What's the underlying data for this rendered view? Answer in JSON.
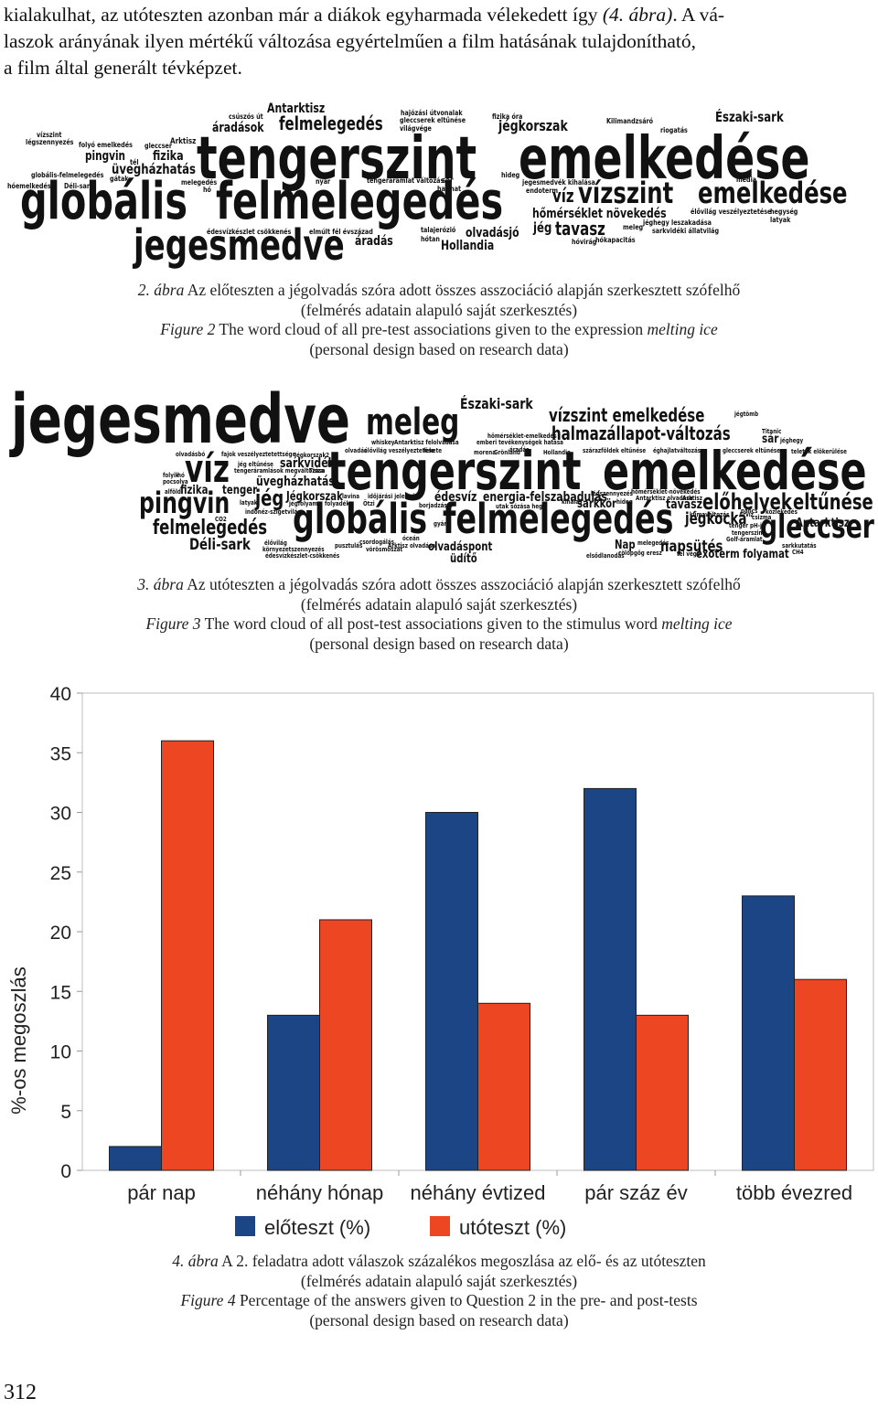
{
  "intro": {
    "lines": [
      [
        "kialakulhat, az utóteszten azonban már a diákok egyharmada vélekedett így ",
        "(4. ábra)",
        ". A vá-"
      ],
      [
        "laszok arányának ilyen mértékű változása egyértelműen a film hatásának tulajdonítható,",
        "",
        ""
      ],
      [
        "a film által generált tévképzet.",
        "",
        ""
      ]
    ]
  },
  "cloud_pre": {
    "words": [
      "Antarktisz",
      "csúszós út",
      "áradások",
      "felmelegedés",
      "hajózási útvonalak",
      "gleccserek eltűnése",
      "világvége",
      "fizika óra",
      "jégkorszak",
      "Kilimandzsáró",
      "riogatás",
      "Északi-sark",
      "Arktisz",
      "folyó emelkedés",
      "gleccser",
      "vízszint",
      "pingvin",
      "tél",
      "fizika",
      "légszennyezés",
      "üvegházhatás",
      "globális-felmelegedés",
      "gátak",
      "tengerszint",
      "emelkedése",
      "hideg",
      "nyár",
      "melegedés",
      "tengeráramlat változás",
      "sár",
      "harmat",
      "jegesmedvék kihalása",
      "endoterm",
      "média",
      "hóemelkedés",
      "Déli-sark",
      "hó",
      "globális",
      "felmelegedés",
      "víz",
      "vízszint",
      "emelkedése",
      "élővilág veszélyeztetése",
      "hegység",
      "latyak",
      "hőmérséklet növekedés",
      "jéghegy leszakadása",
      "sarkvidéki állatvilág",
      "meleg",
      "jég",
      "tavasz",
      "édesvízkészlet csökkenés",
      "elmúlt fél évszázad",
      "talajerózió",
      "hótan",
      "olvadásjó",
      "áradás",
      "Hollandia",
      "hóvirág",
      "hókapacitás",
      "jegesmedve"
    ]
  },
  "cloud_post": {
    "words": [
      "jegesmedve",
      "meleg",
      "Északi-sark",
      "vízszint emelkedése",
      "jégtömb",
      "hőmérséklet-emelkedés",
      "emberi tevékenységek hatása",
      "áradás",
      "halmazállapot-változás",
      "Titanic",
      "sár",
      "jéghegy",
      "morena",
      "Grönland",
      "Hollandia",
      "szárazföldek eltűnése",
      "éghajlatváltozás",
      "gleccserek eltűnése",
      "teletek elökerülése",
      "olvadásbó",
      "fajok veszélyeztetettsége",
      "Jégkorszak2",
      "whiskey",
      "Antarktisz felolvadása",
      "élővilág veszélyeztetése",
      "fekete",
      "olvadás",
      "víz",
      "jég eltűnése",
      "tengeráramlások megváltozása",
      "Tisza",
      "sarkvidék",
      "tengerszint",
      "emelkedése",
      "folyik",
      "hó",
      "pocsolya",
      "alföld",
      "fizika",
      "tenger",
      "üvegházhatás",
      "Jégkorszak",
      "jég",
      "latyak",
      "lavina",
      "időjárási jelenség",
      "édesvíz",
      "energia-felszabadulás",
      "légszennyezés",
      "hőmérséklet-növekedés",
      "Antarktisz olvadása",
      "Arktisz",
      "előhelyek",
      "eltűnése",
      "pingvin",
      "CO2",
      "jégfolyam",
      "folyadék",
      "Ötzi",
      "borjadzás",
      "utak sózása hegy",
      "kihalás",
      "sarkkör",
      "hideg",
      "tavasz",
      "klímaváltozás",
      "Árvíz",
      "pancs",
      "közlekedés",
      "csizma",
      "indonéz-szigetvilág",
      "globális",
      "felmelegedés",
      "jégkocka",
      "tenger pH-ja",
      "tengerszint",
      "gleccser",
      "Golf-áramlat",
      "felmelegedés",
      "Déli-sark",
      "élővilág",
      "környezetszennyezés",
      "édesvízkészlet-csökkenés",
      "pusztulás",
      "csordogálás",
      "vörösmoszat",
      "óceán",
      "Arktisz olvadása",
      "olvadáspont",
      "üdítő",
      "gyár",
      "Nap",
      "melegedés",
      "cölöpgőg eresz",
      "elsődlanodás",
      "napsütés",
      "tél vége",
      "exoterm folyamat",
      "sarkkutatás",
      "CH4",
      "Antarktisz"
    ]
  },
  "captions": {
    "fig2": {
      "hu_num": "2. ábra",
      "hu_text": " Az előteszten a jégolvadás szóra adott összes asszociáció alapján szerkesztett szófelhő",
      "hu_sub": "(felmérés adatain alapuló saját szerkesztés)",
      "en_num": "Figure 2",
      "en_text": " The word cloud of all pre-test associations given to the expression ",
      "en_em": "melting ice",
      "en_sub": "(personal design based on research data)"
    },
    "fig3": {
      "hu_num": "3. ábra",
      "hu_text": " Az utóteszten a jégolvadás szóra adott összes asszociáció alapján szerkesztett szófelhő",
      "hu_sub": "(felmérés adatain alapuló saját szerkesztés)",
      "en_num": "Figure 3",
      "en_text": " The word cloud of all post-test associations given to the stimulus word ",
      "en_em": "melting ice",
      "en_sub": "(personal design based on research data)"
    },
    "fig4": {
      "hu_num": "4. ábra",
      "hu_text": " A 2. feladatra adott válaszok százalékos megoszlása az elő- és az utóteszten",
      "hu_sub": "(felmérés adatain alapuló saját szerkesztés)",
      "en_num": "Figure 4",
      "en_text": " Percentage of the answers given to Question 2 in the pre- and post-tests",
      "en_sub": "(personal design based on research data)"
    }
  },
  "chart_data": {
    "type": "bar",
    "categories": [
      "pár nap",
      "néhány hónap",
      "néhány évtized",
      "pár száz év",
      "több évezred"
    ],
    "series": [
      {
        "name": "előteszt (%)",
        "values": [
          2,
          13,
          30,
          32,
          23
        ],
        "color": "#1c4585"
      },
      {
        "name": "utóteszt (%)",
        "values": [
          36,
          21,
          14,
          13,
          16
        ],
        "color": "#ed4623"
      }
    ],
    "ylabel": "%-os megoszlás",
    "xlabel": "",
    "title": "",
    "ylim": [
      0,
      40
    ],
    "yticks": [
      0,
      5,
      10,
      15,
      20,
      25,
      30,
      35,
      40
    ],
    "grid": false,
    "legend": "bottom"
  },
  "page_number": "312"
}
